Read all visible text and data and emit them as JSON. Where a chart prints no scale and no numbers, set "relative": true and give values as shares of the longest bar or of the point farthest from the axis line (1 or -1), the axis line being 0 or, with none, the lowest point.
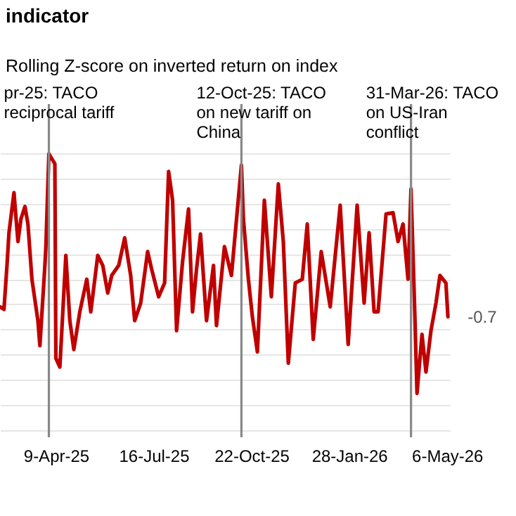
{
  "chart_data": {
    "type": "line",
    "title": "indicator",
    "subtitle": "Rolling Z-score on inverted return on index",
    "relative": true,
    "grid": "y",
    "marker": "none",
    "line_style": "solid",
    "xlim": [
      "2025-02-12",
      "2026-05-09"
    ],
    "xticks": [
      {
        "value": "2025-04-09",
        "label": "9-Apr-25"
      },
      {
        "value": "2025-07-16",
        "label": "16-Jul-25"
      },
      {
        "value": "2025-10-22",
        "label": "22-Oct-25"
      },
      {
        "value": "2026-01-28",
        "label": "28-Jan-26"
      },
      {
        "value": "2026-05-06",
        "label": "6-May-26"
      }
    ],
    "x": [
      "2025-02-12",
      "2025-02-16",
      "2025-02-19",
      "2025-02-21",
      "2025-02-26",
      "2025-03-02",
      "2025-03-05",
      "2025-03-09",
      "2025-03-12",
      "2025-03-16",
      "2025-03-22",
      "2025-03-24",
      "2025-03-29",
      "2025-03-30",
      "2025-04-02",
      "2025-04-08",
      "2025-04-09",
      "2025-04-13",
      "2025-04-19",
      "2025-04-23",
      "2025-04-27",
      "2025-05-03",
      "2025-05-10",
      "2025-05-14",
      "2025-05-21",
      "2025-05-26",
      "2025-05-31",
      "2025-06-04",
      "2025-06-11",
      "2025-06-17",
      "2025-06-23",
      "2025-06-27",
      "2025-07-03",
      "2025-07-10",
      "2025-07-14",
      "2025-07-21",
      "2025-07-27",
      "2025-07-31",
      "2025-08-04",
      "2025-08-08",
      "2025-08-14",
      "2025-08-20",
      "2025-08-24",
      "2025-08-28",
      "2025-09-01",
      "2025-09-07",
      "2025-09-14",
      "2025-09-17",
      "2025-09-25",
      "2025-10-02",
      "2025-10-12",
      "2025-10-14",
      "2025-10-19",
      "2025-10-23",
      "2025-10-28",
      "2025-11-04",
      "2025-11-11",
      "2025-11-18",
      "2025-11-23",
      "2025-11-28",
      "2025-12-05",
      "2025-12-12",
      "2025-12-17",
      "2025-12-23",
      "2025-12-31",
      "2026-01-09",
      "2026-01-19",
      "2026-01-27",
      "2026-02-05",
      "2026-02-12",
      "2026-02-17",
      "2026-02-22",
      "2026-02-26",
      "2026-03-06",
      "2026-03-13",
      "2026-03-18",
      "2026-03-23",
      "2026-03-28",
      "2026-03-31",
      "2026-04-04",
      "2026-04-06",
      "2026-04-11",
      "2026-04-15",
      "2026-04-20",
      "2026-04-25",
      "2026-04-29",
      "2026-05-05",
      "2026-05-07"
    ],
    "series": [
      {
        "color": "#c00000",
        "values": [
          -0.22,
          -0.24,
          0.11,
          0.37,
          0.69,
          0.3,
          0.48,
          0.58,
          0.44,
          0,
          -0.33,
          -0.53,
          0.11,
          0.26,
          1.0,
          0.92,
          -0.63,
          -0.7,
          0.19,
          -0.33,
          -0.56,
          -0.26,
          0,
          -0.26,
          0.19,
          0.11,
          -0.11,
          0.03,
          0.11,
          0.33,
          0.03,
          -0.33,
          -0.19,
          0.22,
          0.08,
          -0.14,
          -0.03,
          0.86,
          0.63,
          -0.41,
          0.14,
          0.56,
          -0.26,
          0.08,
          0.36,
          -0.33,
          0.11,
          -0.37,
          0.26,
          0.03,
          0.91,
          0.48,
          0,
          -0.3,
          -0.58,
          0.63,
          -0.14,
          0.76,
          0.3,
          -0.67,
          -0.03,
          0,
          0.44,
          -0.48,
          0.22,
          -0.22,
          0.59,
          -0.52,
          0.59,
          -0.19,
          0.37,
          -0.26,
          -0.26,
          0.52,
          0.53,
          0.3,
          0.44,
          0,
          0.72,
          -0.33,
          -0.91,
          -0.44,
          -0.74,
          -0.41,
          -0.19,
          0.03,
          -0.03,
          -0.3
        ]
      }
    ],
    "ref_lines": [
      {
        "axis": "x",
        "value": "2025-04-02",
        "label": "pr-25: TACO reciprocal tariff",
        "color": "#888888"
      },
      {
        "axis": "x",
        "value": "2025-10-12",
        "label": "12-Oct-25: TACO on new tariff on China",
        "color": "#888888"
      },
      {
        "axis": "x",
        "value": "2026-03-31",
        "label": "31-Mar-26: TACO on US-Iran conflict",
        "color": "#888888"
      }
    ],
    "annotations": [
      {
        "text": "-0.7",
        "x": "2026-05-07",
        "y": -0.3
      }
    ]
  }
}
